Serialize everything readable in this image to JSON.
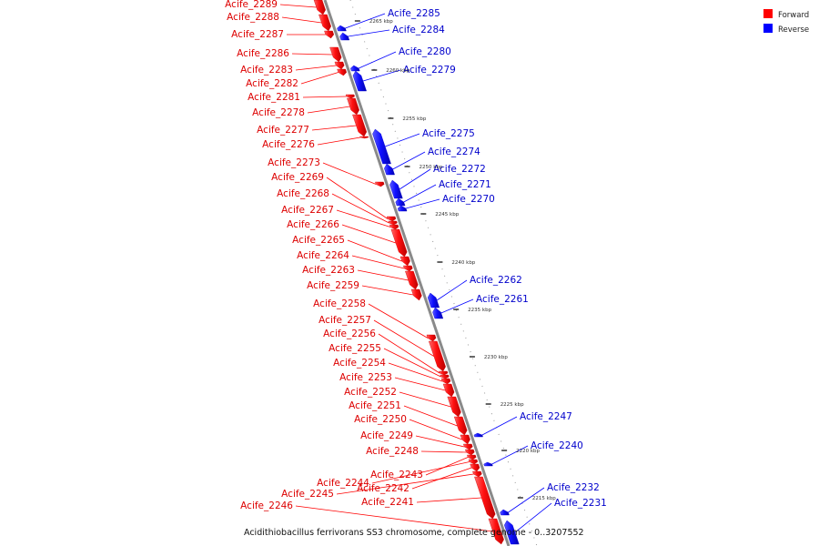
{
  "caption": "Acidithiobacillus ferrivorans SS3 chromosome, complete genome - 0..3207552",
  "legend": [
    {
      "label": "Forward",
      "color": "#ff0000"
    },
    {
      "label": "Reverse",
      "color": "#0000ff"
    }
  ],
  "ticks": [
    "2265 kbp",
    "2260 kbp",
    "2255 kbp",
    "2250 kbp",
    "2245 kbp",
    "2240 kbp",
    "2235 kbp",
    "2230 kbp",
    "2225 kbp",
    "2220 kbp",
    "2215 kbp"
  ],
  "forward_genes": [
    "Acife_2289",
    "Acife_2288",
    "Acife_2287",
    "Acife_2286",
    "Acife_2283",
    "Acife_2282",
    "Acife_2281",
    "Acife_2278",
    "Acife_2277",
    "Acife_2276",
    "Acife_2273",
    "Acife_2269",
    "Acife_2268",
    "Acife_2267",
    "Acife_2266",
    "Acife_2265",
    "Acife_2264",
    "Acife_2263",
    "Acife_2259",
    "Acife_2258",
    "Acife_2257",
    "Acife_2256",
    "Acife_2255",
    "Acife_2254",
    "Acife_2253",
    "Acife_2252",
    "Acife_2251",
    "Acife_2250",
    "Acife_2249",
    "Acife_2248",
    "Acife_2243",
    "Acife_2244",
    "Acife_2242",
    "Acife_2245",
    "Acife_2241",
    "Acife_2246"
  ],
  "reverse_genes": [
    "Acife_2285",
    "Acife_2284",
    "Acife_2280",
    "Acife_2279",
    "Acife_2275",
    "Acife_2274",
    "Acife_2272",
    "Acife_2271",
    "Acife_2270",
    "Acife_2262",
    "Acife_2261",
    "Acife_2247",
    "Acife_2240",
    "Acife_2232",
    "Acife_2231"
  ]
}
